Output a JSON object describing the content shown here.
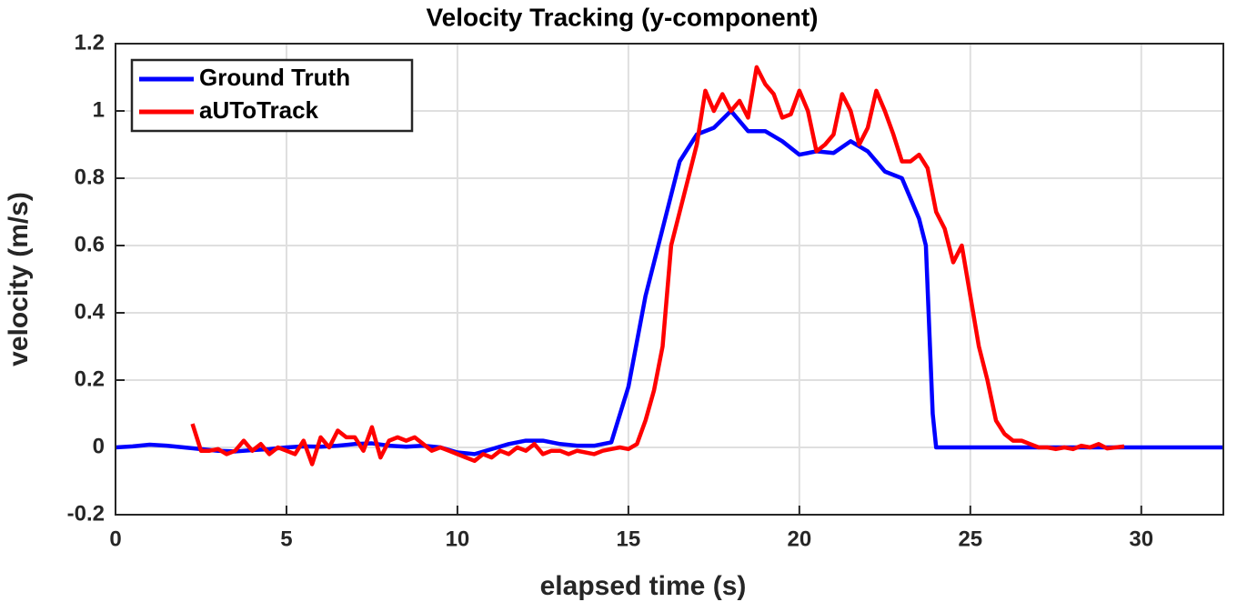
{
  "chart_data": {
    "type": "line",
    "title": "Velocity Tracking (y-component)",
    "xlabel": "elapsed time (s)",
    "ylabel": "velocity (m/s)",
    "xlim": [
      0,
      32.4
    ],
    "ylim": [
      -0.2,
      1.2
    ],
    "xticks": [
      0,
      5,
      10,
      15,
      20,
      25,
      30
    ],
    "yticks": [
      -0.2,
      0,
      0.2,
      0.4,
      0.6,
      0.8,
      1,
      1.2
    ],
    "grid": true,
    "legend": "upper-left",
    "series": [
      {
        "name": "Ground Truth",
        "color": "#0000ff",
        "x": [
          0,
          0.5,
          1,
          1.5,
          2,
          2.5,
          3,
          3.5,
          4,
          4.5,
          5,
          5.5,
          6,
          6.5,
          7,
          7.5,
          8,
          8.5,
          9,
          9.5,
          10,
          10.5,
          11,
          11.5,
          12,
          12.5,
          13,
          13.5,
          14,
          14.5,
          15,
          15.5,
          16,
          16.5,
          17,
          17.5,
          18,
          18.5,
          19,
          19.5,
          20,
          20.5,
          21,
          21.5,
          22,
          22.5,
          23,
          23.5,
          23.7,
          23.9,
          24,
          28,
          32.4
        ],
        "values": [
          0,
          0.003,
          0.008,
          0.005,
          0,
          -0.005,
          -0.01,
          -0.012,
          -0.008,
          -0.005,
          0,
          0.003,
          0.002,
          0.005,
          0.01,
          0.012,
          0.005,
          0.002,
          0.005,
          0,
          -0.015,
          -0.02,
          -0.005,
          0.01,
          0.02,
          0.02,
          0.01,
          0.005,
          0.005,
          0.015,
          0.18,
          0.45,
          0.65,
          0.85,
          0.93,
          0.95,
          1.0,
          0.94,
          0.94,
          0.91,
          0.87,
          0.88,
          0.875,
          0.91,
          0.88,
          0.82,
          0.8,
          0.68,
          0.6,
          0.1,
          0,
          0,
          0
        ]
      },
      {
        "name": "aUToTrack",
        "color": "#ff0000",
        "x": [
          2.25,
          2.5,
          2.75,
          3,
          3.25,
          3.5,
          3.75,
          4,
          4.25,
          4.5,
          4.75,
          5,
          5.25,
          5.5,
          5.75,
          6,
          6.25,
          6.5,
          6.75,
          7,
          7.25,
          7.5,
          7.75,
          8,
          8.25,
          8.5,
          8.75,
          9,
          9.25,
          9.5,
          9.75,
          10,
          10.25,
          10.5,
          10.75,
          11,
          11.25,
          11.5,
          11.75,
          12,
          12.25,
          12.5,
          12.75,
          13,
          13.25,
          13.5,
          13.75,
          14,
          14.25,
          14.5,
          14.75,
          15,
          15.25,
          15.5,
          15.75,
          16,
          16.25,
          16.5,
          16.75,
          17,
          17.25,
          17.5,
          17.75,
          18,
          18.25,
          18.5,
          18.75,
          19,
          19.25,
          19.5,
          19.75,
          20,
          20.25,
          20.5,
          20.75,
          21,
          21.25,
          21.5,
          21.75,
          22,
          22.25,
          22.5,
          22.75,
          23,
          23.25,
          23.5,
          23.75,
          24,
          24.25,
          24.5,
          24.75,
          25,
          25.25,
          25.5,
          25.75,
          26,
          26.25,
          26.5,
          26.75,
          27,
          27.25,
          27.5,
          27.75,
          28,
          28.25,
          28.5,
          28.75,
          29,
          29.25,
          29.5
        ],
        "values": [
          0.07,
          -0.01,
          -0.01,
          -0.005,
          -0.02,
          -0.01,
          0.02,
          -0.01,
          0.01,
          -0.02,
          0,
          -0.01,
          -0.02,
          0.02,
          -0.05,
          0.03,
          0,
          0.05,
          0.03,
          0.03,
          -0.01,
          0.06,
          -0.03,
          0.02,
          0.03,
          0.02,
          0.03,
          0.01,
          -0.01,
          0,
          -0.01,
          -0.02,
          -0.03,
          -0.04,
          -0.02,
          -0.03,
          -0.01,
          -0.02,
          0,
          -0.01,
          0.01,
          -0.02,
          -0.01,
          -0.01,
          -0.02,
          -0.01,
          -0.015,
          -0.02,
          -0.01,
          -0.005,
          0,
          -0.005,
          0.01,
          0.08,
          0.17,
          0.3,
          0.6,
          0.7,
          0.8,
          0.9,
          1.06,
          1.0,
          1.05,
          1.0,
          1.03,
          0.98,
          1.13,
          1.08,
          1.05,
          0.98,
          0.99,
          1.06,
          1.0,
          0.88,
          0.9,
          0.93,
          1.05,
          1.0,
          0.9,
          0.95,
          1.06,
          1.0,
          0.93,
          0.85,
          0.85,
          0.87,
          0.83,
          0.7,
          0.65,
          0.55,
          0.6,
          0.45,
          0.3,
          0.2,
          0.08,
          0.04,
          0.02,
          0.02,
          0.01,
          0,
          0,
          -0.005,
          0,
          -0.005,
          0.005,
          0,
          0.01,
          -0.003,
          0,
          0.003
        ]
      }
    ]
  }
}
